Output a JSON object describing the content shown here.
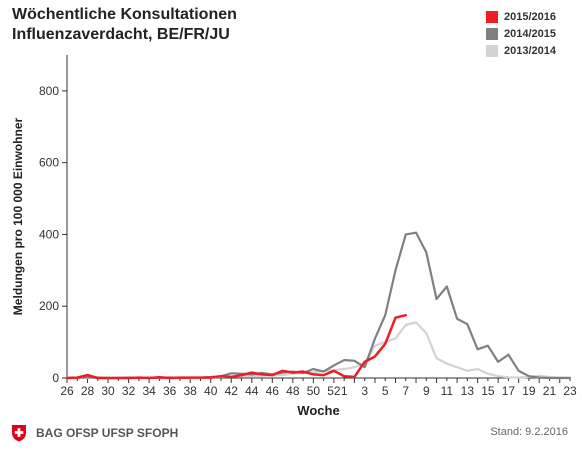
{
  "chart_data": {
    "type": "line",
    "title": [
      "Wöchentliche Konsultationen",
      "Influenzaverdacht, BE/FR/JU"
    ],
    "xlabel": "Woche",
    "ylabel": "Meldungen pro 100 000 Einwohner",
    "yticks": [
      0,
      200,
      400,
      600,
      800
    ],
    "ylim": [
      0,
      900
    ],
    "weeks": [
      26,
      27,
      28,
      29,
      30,
      31,
      32,
      33,
      34,
      35,
      36,
      37,
      38,
      39,
      40,
      41,
      42,
      43,
      44,
      45,
      46,
      47,
      48,
      49,
      50,
      51,
      52,
      1,
      2,
      3,
      4,
      5,
      6,
      7,
      8,
      9,
      10,
      11,
      12,
      13,
      14,
      15,
      16,
      17,
      18,
      19,
      20,
      21,
      22,
      23
    ],
    "xticks": [
      "26",
      "28",
      "30",
      "32",
      "34",
      "36",
      "38",
      "40",
      "42",
      "44",
      "46",
      "48",
      "50",
      "52",
      "1",
      "3",
      "5",
      "7",
      "9",
      "11",
      "13",
      "15",
      "17",
      "19",
      "21",
      "23"
    ],
    "legend_position": "top-right",
    "series": [
      {
        "name": "2015/2016",
        "color": "#ee1c25",
        "values": [
          0,
          1,
          8,
          0,
          0,
          0,
          0,
          1,
          0,
          2,
          0,
          1,
          1,
          1,
          1,
          5,
          3,
          8,
          15,
          10,
          8,
          20,
          15,
          18,
          10,
          8,
          20,
          5,
          3,
          45,
          60,
          95,
          168,
          175,
          null,
          null,
          null,
          null,
          null,
          null,
          null,
          null,
          null,
          null,
          null,
          null,
          null,
          null,
          null,
          null
        ]
      },
      {
        "name": "2014/2015",
        "color": "#808080",
        "values": [
          0,
          1,
          2,
          1,
          0,
          0,
          1,
          0,
          1,
          0,
          1,
          0,
          1,
          1,
          3,
          5,
          13,
          12,
          10,
          14,
          10,
          15,
          18,
          14,
          25,
          18,
          35,
          50,
          48,
          30,
          110,
          175,
          300,
          400,
          405,
          350,
          220,
          255,
          165,
          150,
          80,
          90,
          45,
          65,
          20,
          5,
          1,
          0,
          0,
          0
        ]
      },
      {
        "name": "2013/2014",
        "color": "#d3d3d3",
        "values": [
          0,
          0,
          0,
          0,
          0,
          0,
          1,
          0,
          1,
          0,
          2,
          0,
          0,
          1,
          2,
          3,
          4,
          5,
          6,
          6,
          8,
          8,
          12,
          14,
          16,
          20,
          22,
          25,
          30,
          40,
          90,
          100,
          110,
          148,
          155,
          125,
          55,
          40,
          30,
          20,
          25,
          12,
          5,
          2,
          1,
          3,
          6,
          3,
          1,
          1
        ]
      }
    ]
  },
  "footer": {
    "org": "BAG OFSP UFSP SFOPH",
    "date": "Stand: 9.2.2016"
  }
}
